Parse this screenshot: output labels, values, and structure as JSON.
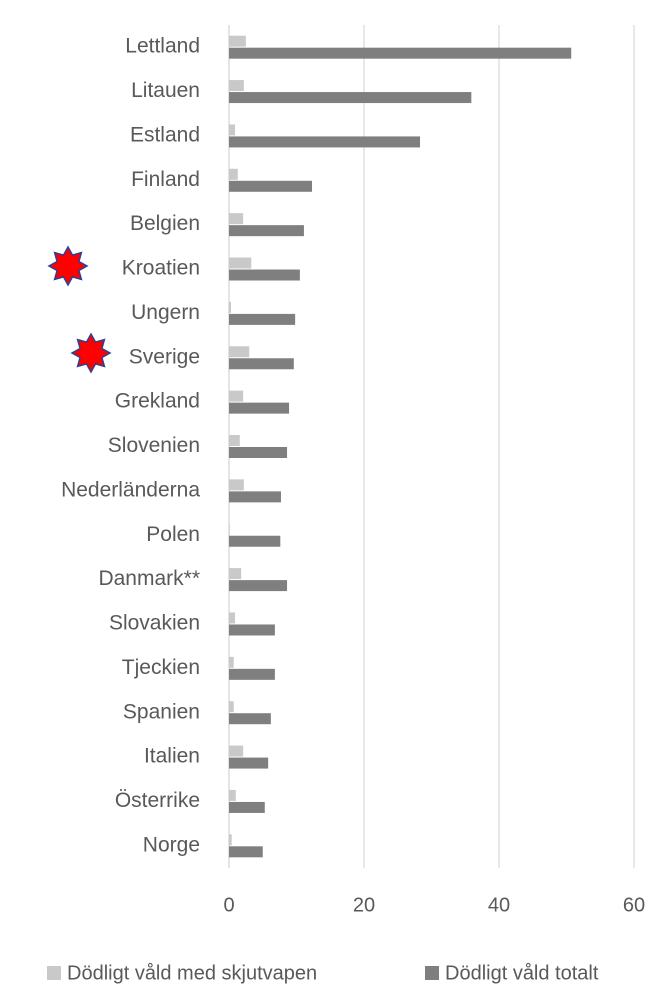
{
  "chart_data": {
    "type": "barh",
    "categories": [
      "Lettland",
      "Litauen",
      "Estland",
      "Finland",
      "Belgien",
      "Kroatien",
      "Ungern",
      "Sverige",
      "Grekland",
      "Slovenien",
      "Nederländerna",
      "Polen",
      "Danmark**",
      "Slovakien",
      "Tjeckien",
      "Spanien",
      "Italien",
      "Österrike",
      "Norge"
    ],
    "series": [
      {
        "name": "Dödligt våld med skjutvapen",
        "color": "#c9c9c9",
        "values": [
          2.5,
          2.2,
          0.9,
          1.3,
          2.1,
          3.3,
          0.3,
          3.0,
          2.1,
          1.6,
          2.2,
          0.1,
          1.8,
          0.9,
          0.7,
          0.7,
          2.1,
          1.0,
          0.4
        ]
      },
      {
        "name": "Dödligt våld totalt",
        "color": "#7f7f7f",
        "values": [
          50.7,
          35.9,
          28.3,
          12.3,
          11.1,
          10.5,
          9.8,
          9.6,
          8.9,
          8.6,
          7.7,
          7.6,
          8.6,
          6.8,
          6.8,
          6.2,
          5.8,
          5.3,
          5.0
        ]
      }
    ],
    "xlim": [
      0,
      60
    ],
    "xticks": [
      0,
      20,
      40,
      60
    ],
    "grid": true,
    "legend": "bottom"
  }
}
